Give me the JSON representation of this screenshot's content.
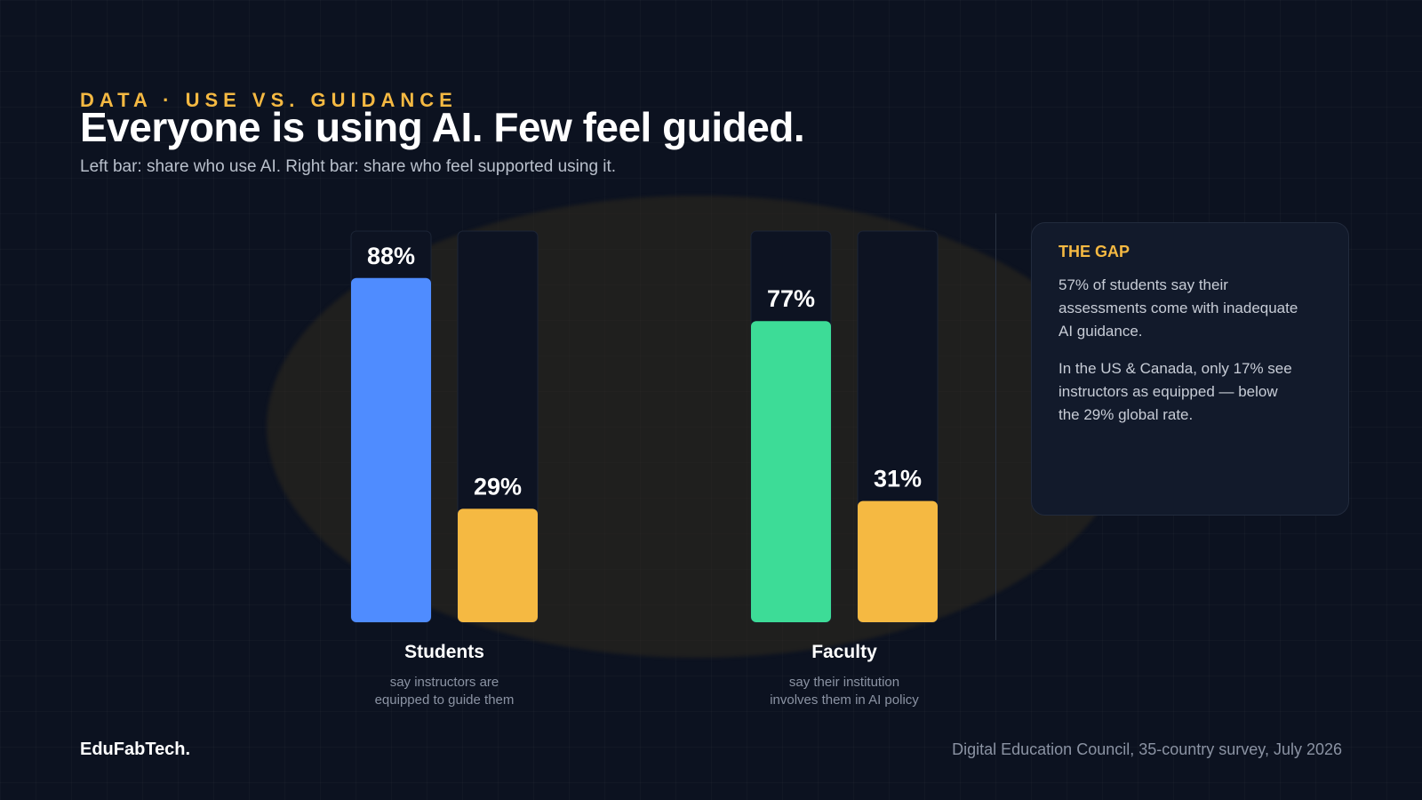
{
  "header": {
    "eyebrow": "DATA · USE VS. GUIDANCE",
    "title": "Everyone is using AI. Few feel guided.",
    "subtitle": "Left bar: share who use AI. Right bar: share who feel supported using it."
  },
  "chart_data": {
    "type": "bar",
    "ylim": [
      0,
      100
    ],
    "grid": false,
    "groups": [
      {
        "label": "Students",
        "note_lines": [
          "say instructors are",
          "equipped to guide them"
        ],
        "bars": [
          {
            "value": 88,
            "label": "88%",
            "color": "#4f8cff"
          },
          {
            "value": 29,
            "label": "29%",
            "color": "#f5b942"
          }
        ]
      },
      {
        "label": "Faculty",
        "note_lines": [
          "say their institution",
          "involves them in AI policy"
        ],
        "bars": [
          {
            "value": 77,
            "label": "77%",
            "color": "#3ddc97"
          },
          {
            "value": 31,
            "label": "31%",
            "color": "#f5b942"
          }
        ]
      }
    ]
  },
  "callout": {
    "title": "THE GAP",
    "p1": "57% of students say their assessments come with inadequate AI guidance.",
    "p2": "In the US & Canada, only 17% see instructors as equipped — below the 29% global rate."
  },
  "footer": {
    "brand": "EduFabTech.",
    "source": "Digital Education Council, 35-country survey, July 2026"
  },
  "colors": {
    "accent": "#f5b942",
    "students_use": "#4f8cff",
    "faculty_use": "#3ddc97",
    "track": "#0d1322"
  }
}
